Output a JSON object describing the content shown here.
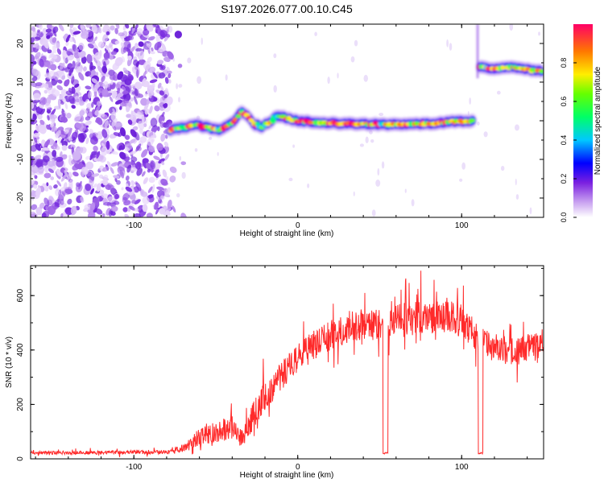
{
  "figure": {
    "title": "S197.2026.077.00.10.C45"
  },
  "chart_data": [
    {
      "id": "spectrogram",
      "type": "heatmap",
      "title": "S197.2026.077.00.10.C45",
      "xlabel": "Height of straight line (km)",
      "ylabel": "Frequency (Hz)",
      "xlim": [
        -163,
        150
      ],
      "ylim": [
        -25,
        25
      ],
      "xticks": [
        -100,
        0,
        100
      ],
      "yticks": [
        -20,
        -10,
        0,
        10,
        20
      ],
      "colorbar": {
        "label": "Normalized spectral amplitude",
        "range": [
          0.0,
          1.0
        ],
        "ticks": [
          0.0,
          0.2,
          0.4,
          0.6,
          0.8
        ]
      },
      "noise_region_x": [
        -163,
        -78
      ],
      "signal_track": [
        {
          "x": -78,
          "f": -2.5
        },
        {
          "x": -70,
          "f": -1.8
        },
        {
          "x": -62,
          "f": -1.0
        },
        {
          "x": -55,
          "f": -1.8
        },
        {
          "x": -48,
          "f": -2.5
        },
        {
          "x": -42,
          "f": -1.2
        },
        {
          "x": -38,
          "f": 0.5
        },
        {
          "x": -34,
          "f": 2.5
        },
        {
          "x": -31,
          "f": 1.5
        },
        {
          "x": -27,
          "f": -0.8
        },
        {
          "x": -22,
          "f": -1.5
        },
        {
          "x": -17,
          "f": -0.2
        },
        {
          "x": -12,
          "f": 1.3
        },
        {
          "x": -6,
          "f": 0.6
        },
        {
          "x": 0,
          "f": 0.0
        },
        {
          "x": 10,
          "f": -0.4
        },
        {
          "x": 25,
          "f": -0.7
        },
        {
          "x": 40,
          "f": -0.8
        },
        {
          "x": 55,
          "f": -1.0
        },
        {
          "x": 70,
          "f": -0.9
        },
        {
          "x": 85,
          "f": -0.6
        },
        {
          "x": 97,
          "f": -0.2
        },
        {
          "x": 108,
          "f": 0.0
        }
      ],
      "second_segment": [
        {
          "x": 111,
          "f": 14.0
        },
        {
          "x": 120,
          "f": 13.5
        },
        {
          "x": 130,
          "f": 13.8
        },
        {
          "x": 140,
          "f": 13.2
        },
        {
          "x": 150,
          "f": 13.0
        }
      ]
    },
    {
      "id": "snr",
      "type": "line",
      "xlabel": "Height of straight line (km)",
      "ylabel": "SNR (10 * v/v)",
      "xlim": [
        -163,
        150
      ],
      "ylim": [
        0,
        710
      ],
      "xticks": [
        -100,
        0,
        100
      ],
      "yticks": [
        0,
        200,
        400,
        600
      ],
      "series": [
        {
          "name": "SNR",
          "color": "#ff2a2a",
          "envelope": [
            {
              "x": -163,
              "base": 22,
              "spread": 12
            },
            {
              "x": -78,
              "base": 25,
              "spread": 14
            },
            {
              "x": -70,
              "base": 40,
              "spread": 30
            },
            {
              "x": -62,
              "base": 75,
              "spread": 60
            },
            {
              "x": -52,
              "base": 95,
              "spread": 75
            },
            {
              "x": -42,
              "base": 115,
              "spread": 90
            },
            {
              "x": -33,
              "base": 80,
              "spread": 70
            },
            {
              "x": -27,
              "base": 160,
              "spread": 110
            },
            {
              "x": -15,
              "base": 270,
              "spread": 120
            },
            {
              "x": -5,
              "base": 340,
              "spread": 110
            },
            {
              "x": 10,
              "base": 420,
              "spread": 110
            },
            {
              "x": 25,
              "base": 470,
              "spread": 110
            },
            {
              "x": 45,
              "base": 490,
              "spread": 110
            },
            {
              "x": 70,
              "base": 520,
              "spread": 120
            },
            {
              "x": 95,
              "base": 520,
              "spread": 120
            },
            {
              "x": 110,
              "base": 450,
              "spread": 110
            },
            {
              "x": 120,
              "base": 400,
              "spread": 90
            },
            {
              "x": 135,
              "base": 400,
              "spread": 90
            },
            {
              "x": 150,
              "base": 430,
              "spread": 90
            }
          ],
          "dropouts": [
            {
              "from": 52,
              "to": 55,
              "value": 18
            },
            {
              "from": 110,
              "to": 113,
              "value": 18
            }
          ]
        }
      ]
    }
  ]
}
